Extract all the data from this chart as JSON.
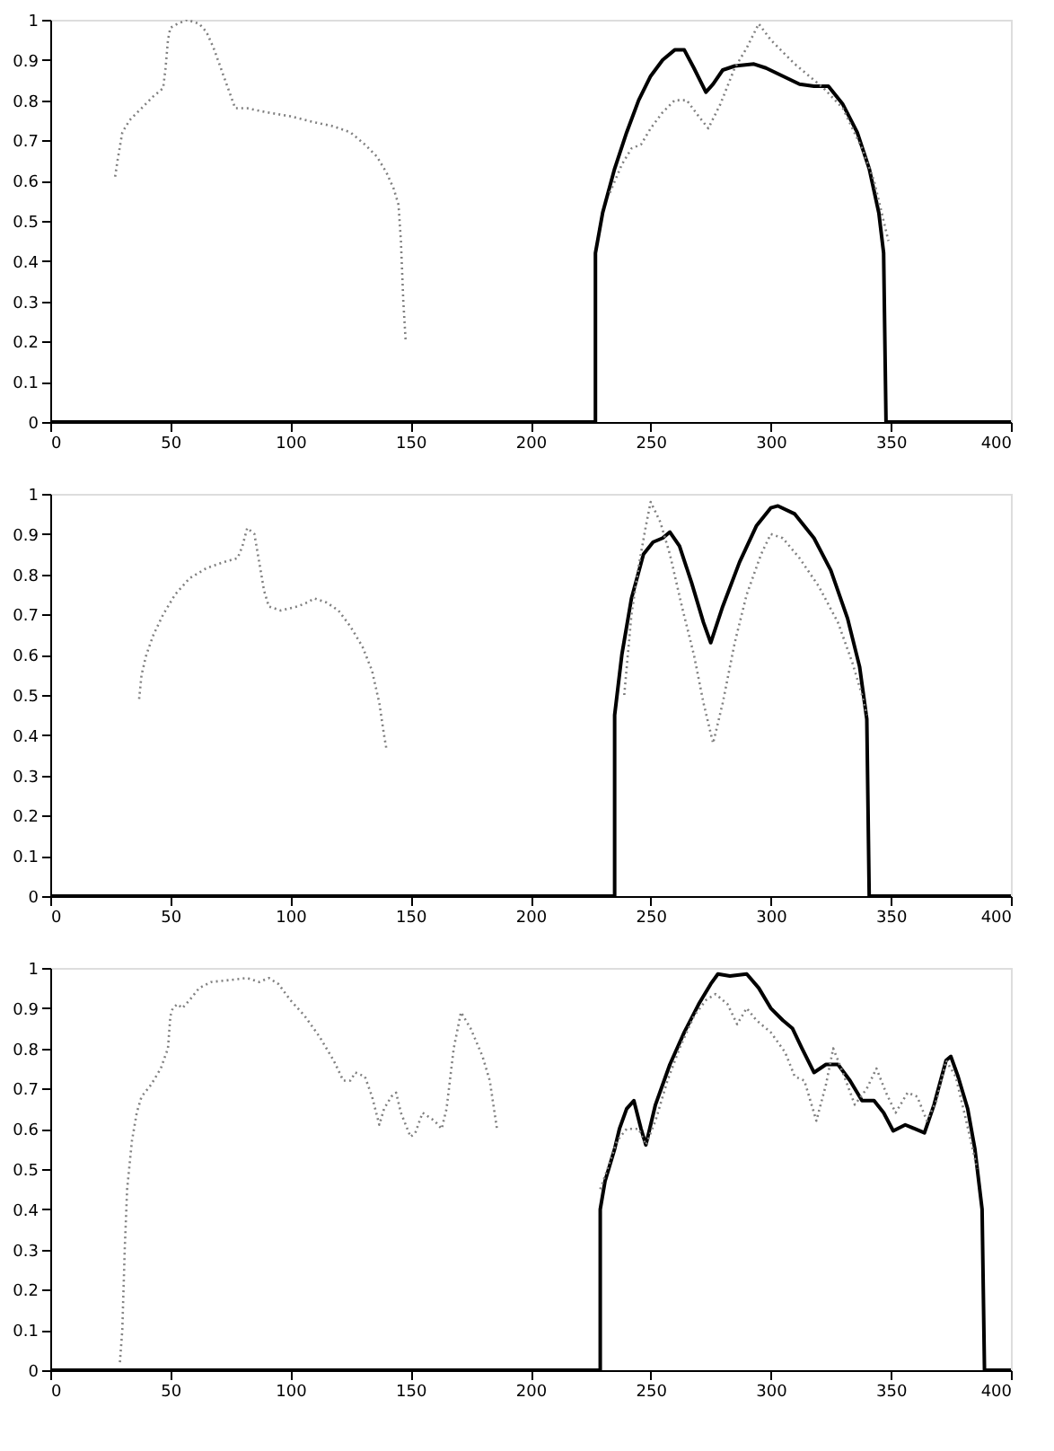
{
  "chart_data": [
    {
      "type": "line",
      "xlim": [
        0,
        400
      ],
      "ylim": [
        0,
        1
      ],
      "xticks": [
        0,
        50,
        100,
        150,
        200,
        250,
        300,
        350,
        400
      ],
      "yticks": [
        0,
        0.1,
        0.2,
        0.3,
        0.4,
        0.5,
        0.6,
        0.7,
        0.8,
        0.9,
        1
      ],
      "series": [
        {
          "color": "#000000",
          "line_style": "solid",
          "x": [
            0,
            227,
            227,
            230,
            235,
            240,
            245,
            250,
            255,
            260,
            264,
            268,
            273,
            276,
            280,
            285,
            293,
            298,
            305,
            312,
            318,
            324,
            330,
            336,
            341,
            345,
            347,
            348,
            400
          ],
          "values": [
            0,
            0,
            0.42,
            0.52,
            0.63,
            0.72,
            0.8,
            0.86,
            0.9,
            0.925,
            0.925,
            0.88,
            0.82,
            0.84,
            0.875,
            0.885,
            0.89,
            0.88,
            0.86,
            0.84,
            0.835,
            0.835,
            0.79,
            0.72,
            0.63,
            0.52,
            0.42,
            0,
            0
          ]
        },
        {
          "color": "#808080",
          "line_style": "dotted",
          "x": [
            27,
            28,
            30,
            33,
            38,
            43,
            47,
            48,
            49,
            50,
            53,
            57,
            62,
            65,
            68,
            71,
            74,
            77,
            82,
            90,
            100,
            110,
            118,
            125,
            131,
            136,
            140,
            143,
            145,
            146,
            147,
            148,
            190,
            233,
            238,
            242,
            246,
            250,
            255,
            260,
            265,
            270,
            274,
            279,
            285,
            290,
            295,
            300,
            310,
            322,
            330,
            338,
            343,
            347,
            349
          ],
          "values": [
            0.61,
            0.65,
            0.72,
            0.75,
            0.78,
            0.81,
            0.83,
            0.88,
            0.95,
            0.98,
            0.99,
            1.0,
            0.99,
            0.97,
            0.93,
            0.88,
            0.83,
            0.78,
            0.78,
            0.77,
            0.76,
            0.745,
            0.735,
            0.72,
            0.69,
            0.66,
            0.62,
            0.58,
            0.54,
            0.45,
            0.3,
            0.2,
            null,
            0.57,
            0.64,
            0.68,
            0.69,
            0.73,
            0.77,
            0.8,
            0.8,
            0.76,
            0.73,
            0.79,
            0.88,
            0.93,
            0.99,
            0.95,
            0.89,
            0.83,
            0.78,
            0.68,
            0.6,
            0.5,
            0.45
          ]
        }
      ]
    },
    {
      "type": "line",
      "xlim": [
        0,
        400
      ],
      "ylim": [
        0,
        1
      ],
      "xticks": [
        0,
        50,
        100,
        150,
        200,
        250,
        300,
        350,
        400
      ],
      "yticks": [
        0,
        0.1,
        0.2,
        0.3,
        0.4,
        0.5,
        0.6,
        0.7,
        0.8,
        0.9,
        1
      ],
      "series": [
        {
          "color": "#000000",
          "line_style": "solid",
          "x": [
            0,
            235,
            235,
            238,
            242,
            247,
            251,
            255,
            258,
            262,
            267,
            272,
            275,
            280,
            287,
            294,
            300,
            303,
            310,
            318,
            325,
            332,
            337,
            340,
            341,
            400
          ],
          "values": [
            0,
            0,
            0.45,
            0.6,
            0.74,
            0.85,
            0.88,
            0.89,
            0.905,
            0.87,
            0.78,
            0.68,
            0.63,
            0.72,
            0.83,
            0.92,
            0.965,
            0.97,
            0.95,
            0.89,
            0.81,
            0.69,
            0.57,
            0.44,
            0,
            0
          ]
        },
        {
          "color": "#808080",
          "line_style": "dotted",
          "x": [
            37,
            38,
            40,
            43,
            47,
            52,
            58,
            65,
            72,
            78,
            80,
            82,
            85,
            87,
            89,
            91,
            96,
            103,
            107,
            110,
            115,
            120,
            125,
            130,
            134,
            137,
            139,
            140,
            190,
            239,
            242,
            245,
            248,
            250,
            254,
            258,
            263,
            268,
            272,
            276,
            280,
            285,
            290,
            296,
            300,
            305,
            312,
            320,
            328,
            334,
            338,
            340
          ],
          "values": [
            0.49,
            0.55,
            0.6,
            0.65,
            0.7,
            0.75,
            0.79,
            0.815,
            0.83,
            0.84,
            0.87,
            0.915,
            0.9,
            0.83,
            0.76,
            0.72,
            0.71,
            0.72,
            0.73,
            0.74,
            0.73,
            0.71,
            0.67,
            0.62,
            0.56,
            0.48,
            0.4,
            0.365,
            null,
            0.5,
            0.7,
            0.82,
            0.92,
            0.98,
            0.93,
            0.85,
            0.72,
            0.6,
            0.48,
            0.38,
            0.48,
            0.63,
            0.75,
            0.85,
            0.9,
            0.89,
            0.84,
            0.77,
            0.68,
            0.58,
            0.5,
            0.45
          ]
        }
      ]
    },
    {
      "type": "line",
      "xlim": [
        0,
        400
      ],
      "ylim": [
        0,
        1
      ],
      "xticks": [
        0,
        50,
        100,
        150,
        200,
        250,
        300,
        350,
        400
      ],
      "yticks": [
        0,
        0.1,
        0.2,
        0.3,
        0.4,
        0.5,
        0.6,
        0.7,
        0.8,
        0.9,
        1
      ],
      "series": [
        {
          "color": "#000000",
          "line_style": "solid",
          "x": [
            0,
            229,
            229,
            231,
            235,
            237,
            240,
            243,
            246,
            248,
            252,
            258,
            264,
            270,
            275,
            278,
            283,
            290,
            295,
            300,
            305,
            309,
            313,
            318,
            323,
            328,
            333,
            338,
            343,
            347,
            351,
            356,
            360,
            364,
            368,
            373,
            375,
            378,
            382,
            385,
            388,
            389,
            400
          ],
          "values": [
            0,
            0,
            0.4,
            0.47,
            0.55,
            0.6,
            0.65,
            0.67,
            0.6,
            0.56,
            0.66,
            0.76,
            0.84,
            0.91,
            0.96,
            0.985,
            0.98,
            0.985,
            0.95,
            0.9,
            0.87,
            0.85,
            0.8,
            0.74,
            0.76,
            0.76,
            0.72,
            0.67,
            0.67,
            0.64,
            0.595,
            0.61,
            0.6,
            0.59,
            0.66,
            0.77,
            0.78,
            0.73,
            0.65,
            0.55,
            0.4,
            0,
            0
          ]
        },
        {
          "color": "#808080",
          "line_style": "dotted",
          "x": [
            29,
            30,
            31,
            32,
            34,
            36,
            38,
            42,
            46,
            49,
            50,
            51,
            53,
            55,
            58,
            62,
            67,
            75,
            82,
            87,
            91,
            95,
            100,
            106,
            112,
            118,
            122,
            125,
            127,
            131,
            134,
            137,
            139,
            142,
            144,
            146,
            150,
            152,
            155,
            160,
            163,
            165,
            168,
            171,
            175,
            180,
            183,
            186,
            200,
            229,
            232,
            236,
            240,
            245,
            248,
            252,
            257,
            262,
            268,
            273,
            277,
            282,
            286,
            290,
            294,
            300,
            306,
            310,
            314,
            317,
            319,
            323,
            326,
            330,
            335,
            340,
            344,
            348,
            352,
            357,
            361,
            365,
            369,
            373,
            377,
            381,
            386
          ],
          "values": [
            0.02,
            0.1,
            0.3,
            0.45,
            0.57,
            0.64,
            0.68,
            0.71,
            0.75,
            0.8,
            0.88,
            0.9,
            0.91,
            0.9,
            0.92,
            0.95,
            0.965,
            0.97,
            0.975,
            0.965,
            0.975,
            0.96,
            0.92,
            0.88,
            0.83,
            0.77,
            0.72,
            0.72,
            0.74,
            0.73,
            0.68,
            0.61,
            0.65,
            0.68,
            0.69,
            0.64,
            0.58,
            0.59,
            0.64,
            0.62,
            0.6,
            0.65,
            0.8,
            0.89,
            0.85,
            0.78,
            0.72,
            0.6,
            null,
            0.45,
            0.5,
            0.57,
            0.6,
            0.6,
            0.56,
            0.62,
            0.72,
            0.8,
            0.88,
            0.92,
            0.935,
            0.91,
            0.86,
            0.9,
            0.87,
            0.84,
            0.79,
            0.73,
            0.72,
            0.66,
            0.62,
            0.71,
            0.8,
            0.74,
            0.66,
            0.7,
            0.75,
            0.69,
            0.64,
            0.69,
            0.68,
            0.62,
            0.67,
            0.77,
            0.73,
            0.63,
            0.5
          ]
        }
      ]
    }
  ]
}
